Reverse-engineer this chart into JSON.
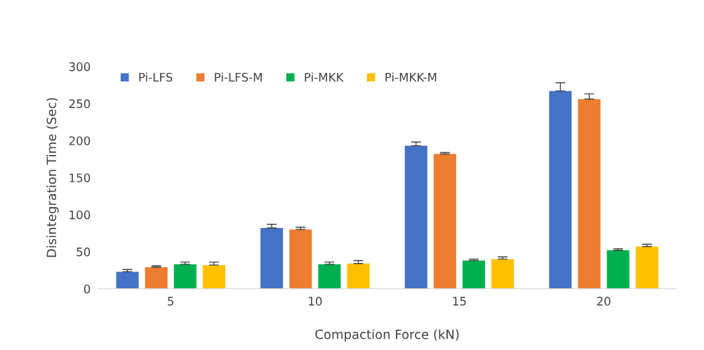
{
  "chart_data": {
    "type": "bar",
    "xlabel": "Compaction Force (kN)",
    "ylabel": "Disintegration Time (Sec)",
    "categories": [
      "5",
      "10",
      "15",
      "20"
    ],
    "series": [
      {
        "name": "Pi-LFS",
        "color": "#4472c4",
        "values": [
          23,
          82,
          193,
          267
        ],
        "errors": [
          3,
          5,
          5,
          11
        ]
      },
      {
        "name": "Pi-LFS-M",
        "color": "#ed7d31",
        "values": [
          29,
          80,
          182,
          256
        ],
        "errors": [
          2,
          3,
          2,
          7
        ]
      },
      {
        "name": "Pi-MKK",
        "color": "#00b050",
        "values": [
          33,
          33,
          38,
          52
        ],
        "errors": [
          3,
          3,
          2,
          2
        ]
      },
      {
        "name": "Pi-MKK-M",
        "color": "#ffc000",
        "values": [
          32,
          34,
          40,
          57
        ],
        "errors": [
          4,
          4,
          3,
          3
        ]
      }
    ],
    "ylim": [
      0,
      300
    ],
    "yticks": [
      0,
      50,
      100,
      150,
      200,
      250,
      300
    ],
    "grid": false,
    "legend": "top left"
  }
}
